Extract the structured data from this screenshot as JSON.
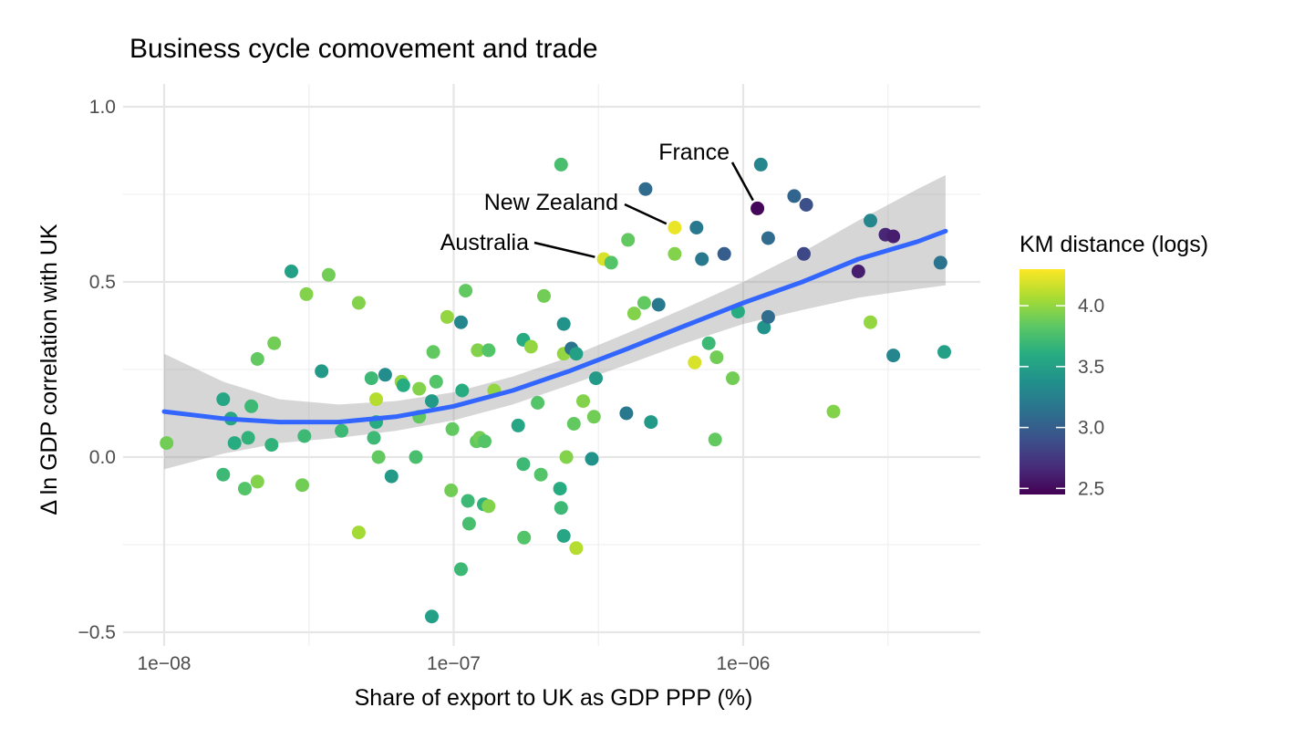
{
  "chart_data": {
    "type": "scatter",
    "title": "Business cycle comovement and trade",
    "xlabel": "Share of export to UK as GDP PPP (%)",
    "ylabel": "Δ ln GDP correlation with UK",
    "x_scale": "log10",
    "xlim": [
      1e-08,
      5.5e-06
    ],
    "ylim": [
      -0.5,
      1.0
    ],
    "x_ticks": [
      {
        "value": 1e-08,
        "label": "1e−08"
      },
      {
        "value": 1e-07,
        "label": "1e−07"
      },
      {
        "value": 1e-06,
        "label": "1e−06"
      }
    ],
    "y_ticks": [
      {
        "value": 1.0,
        "label": "1.0"
      },
      {
        "value": 0.5,
        "label": "0.5"
      },
      {
        "value": 0.0,
        "label": "0.0"
      },
      {
        "value": -0.5,
        "label": "−0.5"
      }
    ],
    "grid": true,
    "legend": {
      "title": "KM distance (logs)",
      "type": "colorbar",
      "range": [
        2.45,
        4.3
      ],
      "ticks": [
        {
          "value": 4.0,
          "label": "4.0"
        },
        {
          "value": 3.5,
          "label": "3.5"
        },
        {
          "value": 3.0,
          "label": "3.0"
        },
        {
          "value": 2.5,
          "label": "2.5"
        }
      ],
      "palette": [
        "#440154",
        "#472d7b",
        "#3b528b",
        "#2c728e",
        "#21908c",
        "#27ad81",
        "#5dc863",
        "#aadc32",
        "#fde725"
      ],
      "placement": "right"
    },
    "smooth": {
      "method": "loess",
      "color": "#3366ff",
      "ribbon_color": "#999999",
      "points": [
        {
          "x": 1e-08,
          "y": 0.13,
          "ymin": -0.035,
          "ymax": 0.295
        },
        {
          "x": 1.6e-08,
          "y": 0.11,
          "ymin": 0.01,
          "ymax": 0.215
        },
        {
          "x": 2.5e-08,
          "y": 0.1,
          "ymin": 0.04,
          "ymax": 0.165
        },
        {
          "x": 4e-08,
          "y": 0.1,
          "ymin": 0.055,
          "ymax": 0.15
        },
        {
          "x": 6.3e-08,
          "y": 0.115,
          "ymin": 0.075,
          "ymax": 0.16
        },
        {
          "x": 1e-07,
          "y": 0.145,
          "ymin": 0.105,
          "ymax": 0.185
        },
        {
          "x": 1.6e-07,
          "y": 0.19,
          "ymin": 0.15,
          "ymax": 0.23
        },
        {
          "x": 2.5e-07,
          "y": 0.245,
          "ymin": 0.205,
          "ymax": 0.285
        },
        {
          "x": 4e-07,
          "y": 0.31,
          "ymin": 0.265,
          "ymax": 0.355
        },
        {
          "x": 6.3e-07,
          "y": 0.375,
          "ymin": 0.325,
          "ymax": 0.425
        },
        {
          "x": 1e-06,
          "y": 0.44,
          "ymin": 0.38,
          "ymax": 0.5
        },
        {
          "x": 1.6e-06,
          "y": 0.5,
          "ymin": 0.42,
          "ymax": 0.585
        },
        {
          "x": 2.5e-06,
          "y": 0.565,
          "ymin": 0.455,
          "ymax": 0.675
        },
        {
          "x": 4e-06,
          "y": 0.615,
          "ymin": 0.48,
          "ymax": 0.765
        },
        {
          "x": 5e-06,
          "y": 0.645,
          "ymin": 0.49,
          "ymax": 0.805
        }
      ]
    },
    "annotations": [
      {
        "label": "France",
        "x": 1.12e-06,
        "y": 0.71
      },
      {
        "label": "New Zealand",
        "x": 5.8e-07,
        "y": 0.655
      },
      {
        "label": "Australia",
        "x": 3.3e-07,
        "y": 0.565
      }
    ],
    "points": [
      {
        "x": 1.02e-08,
        "y": 0.04,
        "c": 3.9
      },
      {
        "x": 1.6e-08,
        "y": 0.165,
        "c": 3.55
      },
      {
        "x": 1.7e-08,
        "y": 0.11,
        "c": 3.55
      },
      {
        "x": 1.6e-08,
        "y": -0.05,
        "c": 3.7
      },
      {
        "x": 1.75e-08,
        "y": 0.04,
        "c": 3.6
      },
      {
        "x": 2e-08,
        "y": 0.145,
        "c": 3.7
      },
      {
        "x": 1.95e-08,
        "y": 0.055,
        "c": 3.65
      },
      {
        "x": 1.9e-08,
        "y": -0.09,
        "c": 3.8
      },
      {
        "x": 2.1e-08,
        "y": 0.28,
        "c": 3.85
      },
      {
        "x": 2.1e-08,
        "y": -0.07,
        "c": 3.95
      },
      {
        "x": 2.4e-08,
        "y": 0.325,
        "c": 3.9
      },
      {
        "x": 2.35e-08,
        "y": 0.035,
        "c": 3.65
      },
      {
        "x": 2.75e-08,
        "y": 0.53,
        "c": 3.5
      },
      {
        "x": 3e-08,
        "y": -0.08,
        "c": 3.9
      },
      {
        "x": 3.1e-08,
        "y": 0.465,
        "c": 3.95
      },
      {
        "x": 3.05e-08,
        "y": 0.06,
        "c": 3.7
      },
      {
        "x": 3.5e-08,
        "y": 0.245,
        "c": 3.45
      },
      {
        "x": 3.7e-08,
        "y": 0.52,
        "c": 3.9
      },
      {
        "x": 4.1e-08,
        "y": 0.075,
        "c": 3.7
      },
      {
        "x": 4.7e-08,
        "y": 0.44,
        "c": 3.95
      },
      {
        "x": 4.7e-08,
        "y": -0.215,
        "c": 4.05
      },
      {
        "x": 5.2e-08,
        "y": 0.225,
        "c": 3.7
      },
      {
        "x": 5.4e-08,
        "y": 0.165,
        "c": 4.1
      },
      {
        "x": 5.4e-08,
        "y": 0.1,
        "c": 3.6
      },
      {
        "x": 5.3e-08,
        "y": 0.055,
        "c": 3.7
      },
      {
        "x": 5.5e-08,
        "y": 0.0,
        "c": 3.85
      },
      {
        "x": 5.8e-08,
        "y": 0.235,
        "c": 3.35
      },
      {
        "x": 6.1e-08,
        "y": -0.055,
        "c": 3.45
      },
      {
        "x": 6.6e-08,
        "y": 0.215,
        "c": 4.0
      },
      {
        "x": 6.7e-08,
        "y": 0.205,
        "c": 3.6
      },
      {
        "x": 7.4e-08,
        "y": 0.0,
        "c": 3.75
      },
      {
        "x": 7.6e-08,
        "y": 0.195,
        "c": 3.95
      },
      {
        "x": 7.6e-08,
        "y": 0.115,
        "c": 3.85
      },
      {
        "x": 8.4e-08,
        "y": 0.16,
        "c": 3.45
      },
      {
        "x": 8.5e-08,
        "y": 0.3,
        "c": 3.85
      },
      {
        "x": 8.7e-08,
        "y": 0.215,
        "c": 3.8
      },
      {
        "x": 8.4e-08,
        "y": -0.455,
        "c": 3.5
      },
      {
        "x": 9.5e-08,
        "y": 0.4,
        "c": 4.0
      },
      {
        "x": 9.9e-08,
        "y": 0.08,
        "c": 3.85
      },
      {
        "x": 9.8e-08,
        "y": -0.095,
        "c": 3.9
      },
      {
        "x": 1.06e-07,
        "y": 0.385,
        "c": 3.3
      },
      {
        "x": 1.07e-07,
        "y": 0.19,
        "c": 3.6
      },
      {
        "x": 1.1e-07,
        "y": 0.475,
        "c": 3.85
      },
      {
        "x": 1.12e-07,
        "y": -0.125,
        "c": 3.7
      },
      {
        "x": 1.13e-07,
        "y": -0.19,
        "c": 3.75
      },
      {
        "x": 1.06e-07,
        "y": -0.32,
        "c": 3.7
      },
      {
        "x": 1.21e-07,
        "y": 0.305,
        "c": 3.95
      },
      {
        "x": 1.2e-07,
        "y": 0.045,
        "c": 3.85
      },
      {
        "x": 1.23e-07,
        "y": 0.055,
        "c": 3.9
      },
      {
        "x": 1.28e-07,
        "y": 0.045,
        "c": 3.8
      },
      {
        "x": 1.27e-07,
        "y": -0.135,
        "c": 3.65
      },
      {
        "x": 1.32e-07,
        "y": -0.14,
        "c": 3.95
      },
      {
        "x": 1.32e-07,
        "y": 0.305,
        "c": 3.8
      },
      {
        "x": 1.38e-07,
        "y": 0.19,
        "c": 4.0
      },
      {
        "x": 1.67e-07,
        "y": 0.09,
        "c": 3.55
      },
      {
        "x": 1.74e-07,
        "y": 0.335,
        "c": 3.6
      },
      {
        "x": 1.74e-07,
        "y": -0.02,
        "c": 3.7
      },
      {
        "x": 1.75e-07,
        "y": -0.23,
        "c": 3.8
      },
      {
        "x": 1.85e-07,
        "y": 0.315,
        "c": 4.0
      },
      {
        "x": 1.95e-07,
        "y": 0.155,
        "c": 3.8
      },
      {
        "x": 2e-07,
        "y": -0.05,
        "c": 3.8
      },
      {
        "x": 2.05e-07,
        "y": 0.46,
        "c": 3.9
      },
      {
        "x": 2.35e-07,
        "y": 0.835,
        "c": 3.75
      },
      {
        "x": 2.4e-07,
        "y": 0.38,
        "c": 3.4
      },
      {
        "x": 2.4e-07,
        "y": 0.295,
        "c": 4.0
      },
      {
        "x": 2.33e-07,
        "y": -0.09,
        "c": 3.6
      },
      {
        "x": 2.35e-07,
        "y": -0.145,
        "c": 3.7
      },
      {
        "x": 2.45e-07,
        "y": 0.0,
        "c": 3.95
      },
      {
        "x": 2.4e-07,
        "y": -0.225,
        "c": 3.55
      },
      {
        "x": 2.55e-07,
        "y": 0.31,
        "c": 3.15
      },
      {
        "x": 2.6e-07,
        "y": 0.095,
        "c": 3.85
      },
      {
        "x": 2.65e-07,
        "y": 0.295,
        "c": 3.5
      },
      {
        "x": 2.65e-07,
        "y": -0.26,
        "c": 4.1
      },
      {
        "x": 2.8e-07,
        "y": 0.16,
        "c": 3.95
      },
      {
        "x": 3e-07,
        "y": -0.005,
        "c": 3.4
      },
      {
        "x": 3.05e-07,
        "y": 0.115,
        "c": 3.9
      },
      {
        "x": 3.1e-07,
        "y": 0.225,
        "c": 3.45
      },
      {
        "x": 3.3e-07,
        "y": 0.565,
        "c": 4.2
      },
      {
        "x": 3.5e-07,
        "y": 0.555,
        "c": 3.8
      },
      {
        "x": 3.95e-07,
        "y": 0.125,
        "c": 3.2
      },
      {
        "x": 4e-07,
        "y": 0.62,
        "c": 3.85
      },
      {
        "x": 4.2e-07,
        "y": 0.41,
        "c": 3.95
      },
      {
        "x": 4.55e-07,
        "y": 0.44,
        "c": 3.85
      },
      {
        "x": 4.6e-07,
        "y": 0.765,
        "c": 3.1
      },
      {
        "x": 4.8e-07,
        "y": 0.1,
        "c": 3.45
      },
      {
        "x": 5.1e-07,
        "y": 0.435,
        "c": 3.2
      },
      {
        "x": 5.8e-07,
        "y": 0.655,
        "c": 4.25
      },
      {
        "x": 5.8e-07,
        "y": 0.58,
        "c": 3.95
      },
      {
        "x": 6.9e-07,
        "y": 0.655,
        "c": 3.2
      },
      {
        "x": 6.8e-07,
        "y": 0.27,
        "c": 4.2
      },
      {
        "x": 7.2e-07,
        "y": 0.565,
        "c": 3.2
      },
      {
        "x": 7.6e-07,
        "y": 0.325,
        "c": 3.7
      },
      {
        "x": 8.1e-07,
        "y": 0.285,
        "c": 3.9
      },
      {
        "x": 8e-07,
        "y": 0.05,
        "c": 3.85
      },
      {
        "x": 8.6e-07,
        "y": 0.58,
        "c": 3.0
      },
      {
        "x": 9.2e-07,
        "y": 0.225,
        "c": 3.9
      },
      {
        "x": 9.6e-07,
        "y": 0.415,
        "c": 3.6
      },
      {
        "x": 1.12e-06,
        "y": 0.71,
        "c": 2.48
      },
      {
        "x": 1.15e-06,
        "y": 0.835,
        "c": 3.3
      },
      {
        "x": 1.18e-06,
        "y": 0.37,
        "c": 3.4
      },
      {
        "x": 1.22e-06,
        "y": 0.4,
        "c": 3.1
      },
      {
        "x": 1.22e-06,
        "y": 0.625,
        "c": 3.1
      },
      {
        "x": 1.5e-06,
        "y": 0.745,
        "c": 3.05
      },
      {
        "x": 1.65e-06,
        "y": 0.72,
        "c": 2.9
      },
      {
        "x": 1.62e-06,
        "y": 0.58,
        "c": 2.85
      },
      {
        "x": 2.05e-06,
        "y": 0.13,
        "c": 3.95
      },
      {
        "x": 2.5e-06,
        "y": 0.53,
        "c": 2.6
      },
      {
        "x": 2.75e-06,
        "y": 0.675,
        "c": 3.3
      },
      {
        "x": 2.75e-06,
        "y": 0.385,
        "c": 4.0
      },
      {
        "x": 3.1e-06,
        "y": 0.635,
        "c": 2.65
      },
      {
        "x": 3.3e-06,
        "y": 0.63,
        "c": 2.6
      },
      {
        "x": 3.3e-06,
        "y": 0.29,
        "c": 3.3
      },
      {
        "x": 4.8e-06,
        "y": 0.555,
        "c": 3.15
      },
      {
        "x": 4.95e-06,
        "y": 0.3,
        "c": 3.5
      }
    ]
  }
}
